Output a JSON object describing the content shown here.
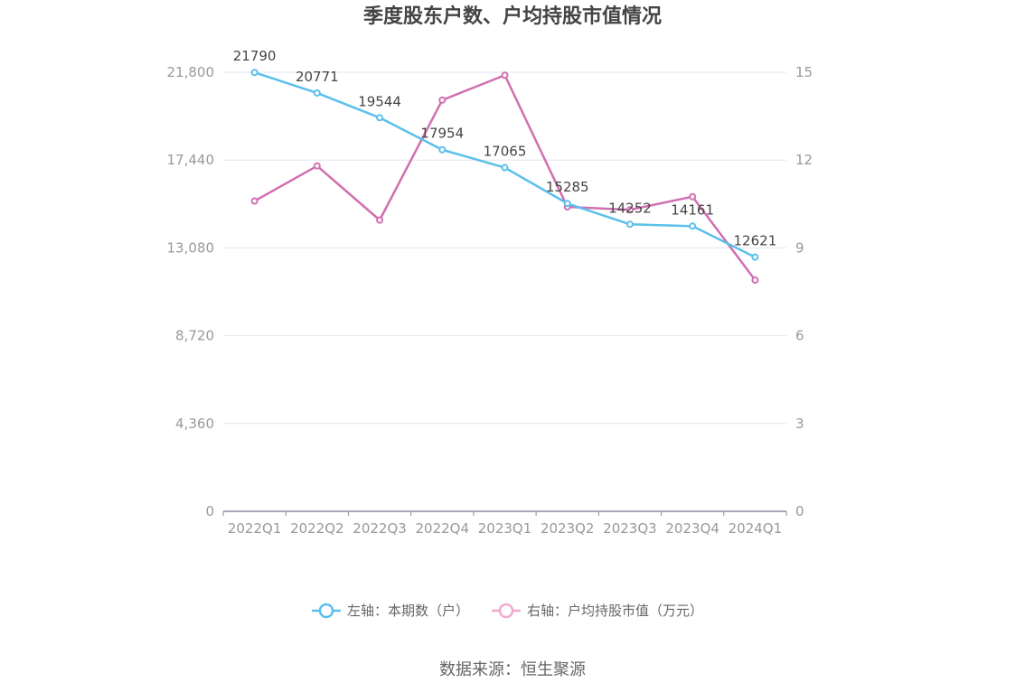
{
  "chart_data": {
    "type": "line",
    "title": "季度股东户数、户均持股市值情况",
    "categories": [
      "2022Q1",
      "2022Q2",
      "2022Q3",
      "2022Q4",
      "2023Q1",
      "2023Q2",
      "2023Q3",
      "2023Q4",
      "2024Q1"
    ],
    "left_axis": {
      "ticks": [
        "0",
        "4,360",
        "8,720",
        "13,080",
        "17,440",
        "21,800"
      ],
      "range": [
        0,
        21800
      ]
    },
    "right_axis": {
      "ticks": [
        "0",
        "3",
        "6",
        "9",
        "12",
        "15"
      ],
      "range": [
        0,
        15
      ]
    },
    "series": [
      {
        "name": "左轴：本期数（户）",
        "axis": "left",
        "color": "#5bc0eb",
        "values": [
          21790,
          20771,
          19544,
          17954,
          17065,
          15285,
          14252,
          14161,
          12621
        ],
        "labels": [
          "21790",
          "20771",
          "19544",
          "17954",
          "17065",
          "15285",
          "14252",
          "14161",
          "12621"
        ]
      },
      {
        "name": "右轴：户均持股市值（万元）",
        "axis": "right",
        "color": "#d16fb0",
        "legend_color": "#f0a8d0",
        "values": [
          10.6,
          11.8,
          9.95,
          14.05,
          14.9,
          10.4,
          10.3,
          10.75,
          7.9
        ]
      }
    ],
    "grid": true,
    "legend_position": "bottom",
    "source": "数据来源：恒生聚源"
  }
}
